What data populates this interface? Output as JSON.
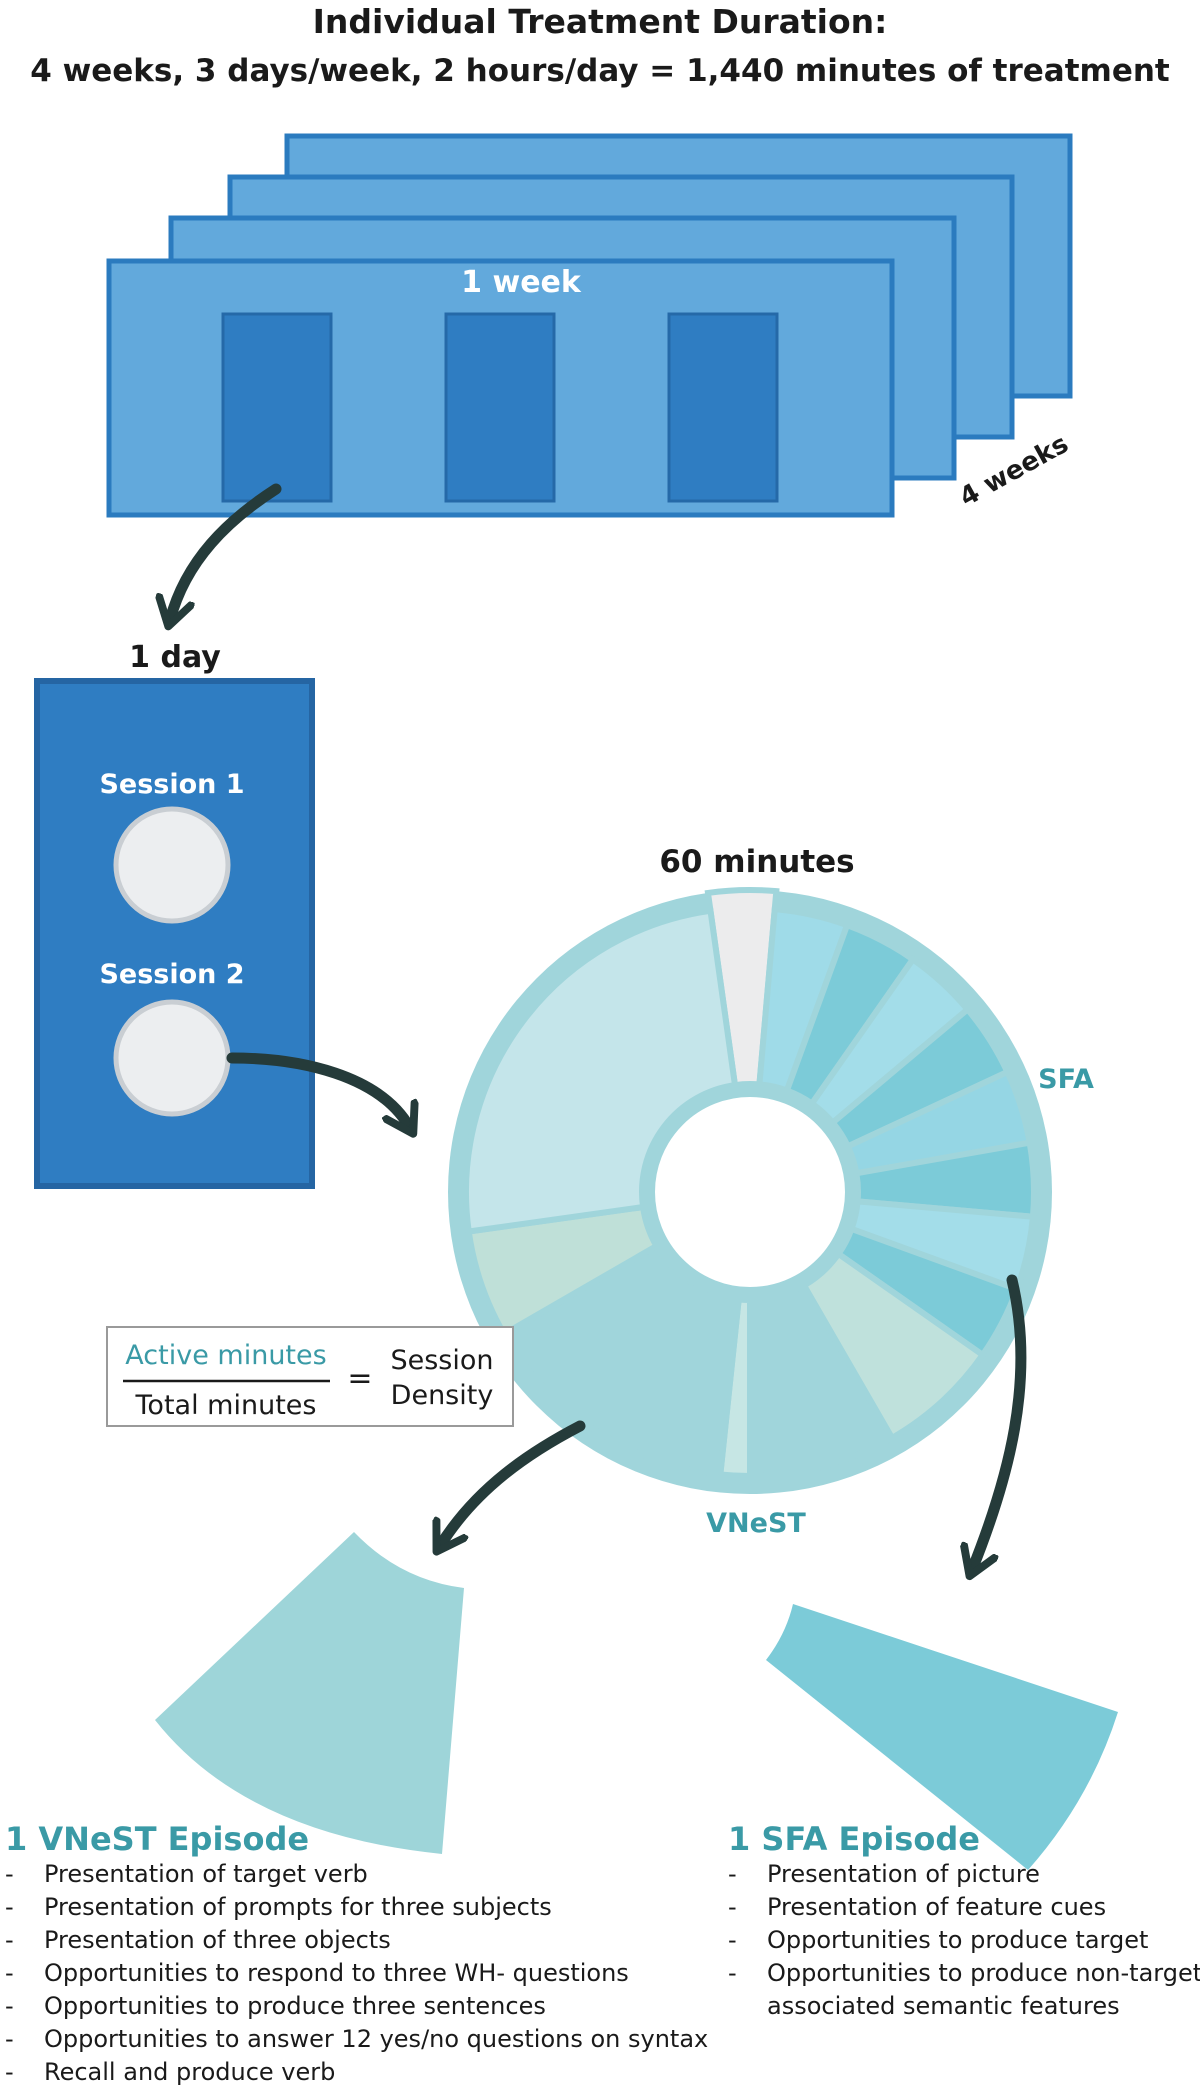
{
  "header": {
    "title": "Individual Treatment Duration:",
    "subtitle": "4 weeks, 3 days/week, 2 hours/day = 1,440 minutes of treatment"
  },
  "week": {
    "label": "1 week",
    "count_label": "4 weeks"
  },
  "day": {
    "label": "1 day",
    "session1": "Session 1",
    "session2": "Session 2"
  },
  "session_wheel": {
    "label": "60 minutes",
    "sfa_label": "SFA",
    "vnest_label": "VNeST"
  },
  "density": {
    "numerator": "Active minutes",
    "denominator": "Total minutes",
    "equals": "=",
    "result_line1": "Session",
    "result_line2": "Density"
  },
  "vnest_episode": {
    "title": "1 VNeST Episode",
    "items": [
      "Presentation of target verb",
      "Presentation of prompts for three subjects",
      "Presentation of three objects",
      "Opportunities to respond to three WH- questions",
      "Opportunities to produce three sentences",
      "Opportunities to answer 12 yes/no questions on syntax",
      "Recall and produce verb"
    ]
  },
  "sfa_episode": {
    "title": "1 SFA Episode",
    "items": [
      "Presentation of picture",
      "Presentation of feature cues",
      "Opportunities to produce target",
      "Opportunities to produce non-target,",
      "associated semantic features"
    ]
  },
  "colors": {
    "week_fill": "#62a9dc",
    "week_stroke": "#2b7bbf",
    "day_fill": "#2f7dc2",
    "sfa": "#7ccbd8",
    "vnest": "#9ed5d9",
    "teal_text": "#3a9aa6",
    "arrow": "#253b3a"
  }
}
